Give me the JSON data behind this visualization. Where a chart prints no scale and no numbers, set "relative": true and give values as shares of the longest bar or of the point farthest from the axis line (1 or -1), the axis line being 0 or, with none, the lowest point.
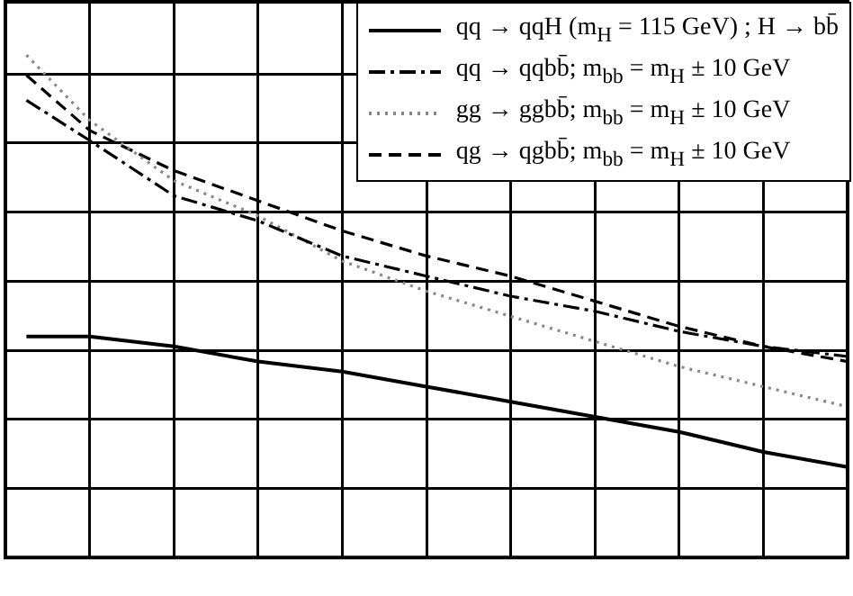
{
  "chart_data": {
    "type": "line",
    "relative": true,
    "grid": true,
    "legend": "top right",
    "categories": [
      null,
      null,
      null,
      null,
      null,
      null,
      null,
      null,
      null,
      null,
      null,
      null,
      null,
      null,
      null,
      null,
      null,
      null,
      null,
      null,
      null,
      null,
      null,
      null,
      null,
      null,
      null,
      null,
      null,
      null,
      null,
      null,
      null,
      null,
      null,
      null,
      null,
      null,
      null,
      null,
      null
    ],
    "series": [
      {
        "name": "qq → qqH (m$_{H}$ = 115 GeV) ; H → bb̄",
        "color": "#000000",
        "line_style": "solid",
        "values": [
          null,
          0.44,
          null,
          null,
          0.44,
          null,
          null,
          null,
          0.42,
          null,
          null,
          null,
          0.39,
          null,
          null,
          null,
          0.37,
          null,
          null,
          null,
          0.34,
          null,
          null,
          null,
          0.31,
          null,
          null,
          null,
          0.28,
          null,
          null,
          null,
          0.25,
          null,
          null,
          null,
          0.21,
          null,
          null,
          null,
          0.18
        ]
      },
      {
        "name": "qq → qqbb̄; m$_{bb}$ = m$_{H}$ ± 10 GeV",
        "color": "#000000",
        "line_style": "dashdot",
        "values": [
          null,
          0.91,
          null,
          null,
          0.83,
          null,
          null,
          null,
          0.72,
          null,
          null,
          null,
          0.67,
          null,
          null,
          null,
          0.6,
          null,
          null,
          null,
          0.56,
          null,
          null,
          null,
          0.52,
          null,
          null,
          null,
          0.49,
          null,
          null,
          null,
          0.45,
          null,
          null,
          null,
          0.42,
          null,
          null,
          null,
          0.4
        ]
      },
      {
        "name": "gg → ggbb̄; m$_{bb}$ = m$_{H}$ ± 10 GeV",
        "color": "#888888",
        "line_style": "dotted",
        "values": [
          null,
          1,
          null,
          null,
          0.87,
          null,
          null,
          null,
          0.75,
          null,
          null,
          null,
          0.68,
          null,
          null,
          null,
          0.59,
          null,
          null,
          null,
          0.53,
          null,
          null,
          null,
          0.48,
          null,
          null,
          null,
          0.43,
          null,
          null,
          null,
          0.38,
          null,
          null,
          null,
          0.34,
          null,
          null,
          null,
          0.3
        ]
      },
      {
        "name": "qg → qgbb̄; m$_{bb}$ = m$_{H}$ ± 10 GeV",
        "color": "#000000",
        "line_style": "dashed",
        "values": [
          null,
          0.96,
          null,
          null,
          0.85,
          null,
          null,
          null,
          0.77,
          null,
          null,
          null,
          0.71,
          null,
          null,
          null,
          0.65,
          null,
          null,
          null,
          0.6,
          null,
          null,
          null,
          0.56,
          null,
          null,
          null,
          0.51,
          null,
          null,
          null,
          0.46,
          null,
          null,
          null,
          0.42,
          null,
          null,
          null,
          0.39
        ]
      }
    ]
  }
}
